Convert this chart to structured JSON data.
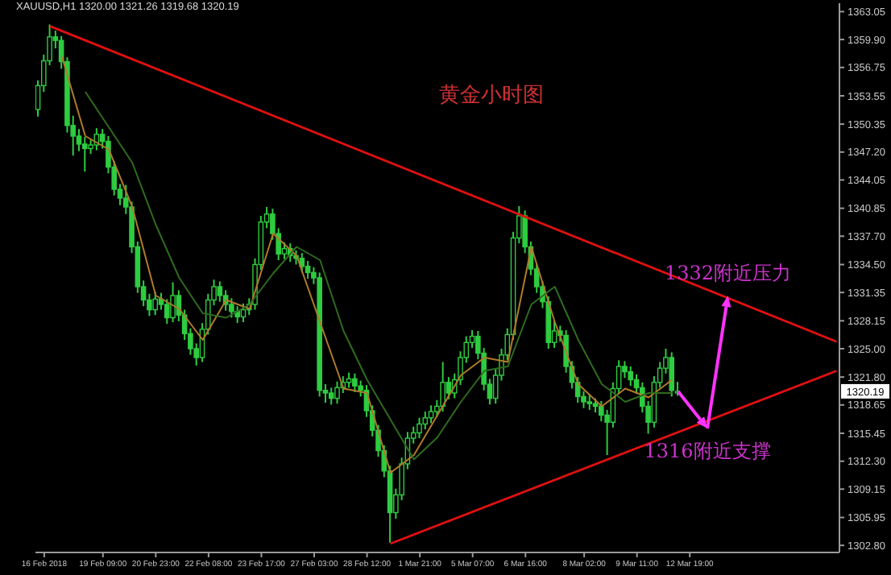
{
  "chart_data": {
    "type": "candlestick",
    "title": "黄金小时图",
    "color": "#2ecc40",
    "categories": [
      null,
      "16 Feb 2018",
      null,
      null,
      null,
      null,
      null,
      null,
      null,
      null,
      null,
      "19 Feb 09:00",
      null,
      null,
      null,
      null,
      null,
      null,
      null,
      null,
      "20 Feb 23:00",
      null,
      null,
      null,
      null,
      null,
      null,
      null,
      null,
      "22 Feb 08:00",
      null,
      null,
      null,
      null,
      null,
      null,
      null,
      null,
      "23 Feb 17:00",
      null,
      null,
      null,
      null,
      null,
      null,
      null,
      null,
      "27 Feb 03:00",
      null,
      null,
      null,
      null,
      null,
      null,
      null,
      null,
      "28 Feb 12:00",
      null,
      null,
      null,
      null,
      null,
      null,
      null,
      null,
      "1 Mar 21:00",
      null,
      null,
      null,
      null,
      null,
      null,
      null,
      null,
      "5 Mar 07:00",
      null,
      null,
      null,
      null,
      null,
      null,
      null,
      null,
      "6 Mar 16:00",
      null,
      null,
      null,
      null,
      null,
      null,
      null,
      null,
      null,
      "8 Mar 02:00",
      null,
      null,
      null,
      null,
      null,
      null,
      null,
      null,
      "9 Mar 11:00",
      null,
      null,
      null,
      null,
      null,
      null,
      null,
      null,
      "12 Mar 19:00",
      null,
      null,
      null,
      null,
      null,
      null,
      null,
      null,
      null,
      null,
      null,
      null,
      null,
      null,
      null,
      null,
      null,
      null,
      null,
      null,
      null,
      null,
      null,
      null,
      null
    ],
    "ohlc": [
      [
        1352.0,
        1355.3,
        1351.2,
        1354.7
      ],
      [
        1354.7,
        1358.2,
        1354.0,
        1357.5
      ],
      [
        1357.5,
        1361.6,
        1357.0,
        1360.2
      ],
      [
        1360.2,
        1360.9,
        1358.9,
        1359.8
      ],
      [
        1359.8,
        1360.3,
        1356.6,
        1357.4
      ],
      [
        1357.4,
        1357.9,
        1349.4,
        1350.2
      ],
      [
        1350.2,
        1351.3,
        1346.8,
        1349.0
      ],
      [
        1349.0,
        1349.8,
        1347.3,
        1348.1
      ],
      [
        1348.1,
        1348.9,
        1345.0,
        1347.6
      ],
      [
        1347.6,
        1348.7,
        1347.0,
        1348.0
      ],
      [
        1348.0,
        1349.9,
        1347.4,
        1349.2
      ],
      [
        1349.2,
        1349.8,
        1347.6,
        1348.4
      ],
      [
        1348.4,
        1349.0,
        1344.8,
        1345.5
      ],
      [
        1345.5,
        1346.2,
        1342.3,
        1343.0
      ],
      [
        1343.0,
        1343.6,
        1341.2,
        1342.0
      ],
      [
        1342.0,
        1343.5,
        1340.2,
        1341.0
      ],
      [
        1341.0,
        1341.6,
        1335.8,
        1336.5
      ],
      [
        1336.5,
        1337.1,
        1331.3,
        1332.0
      ],
      [
        1332.0,
        1332.7,
        1329.8,
        1330.5
      ],
      [
        1330.5,
        1331.2,
        1328.7,
        1329.4
      ],
      [
        1329.4,
        1331.4,
        1328.8,
        1330.6
      ],
      [
        1330.6,
        1331.3,
        1329.4,
        1330.0
      ],
      [
        1330.0,
        1330.6,
        1327.8,
        1328.5
      ],
      [
        1328.5,
        1332.5,
        1328.0,
        1331.0
      ],
      [
        1331.0,
        1331.6,
        1328.1,
        1328.8
      ],
      [
        1328.8,
        1329.4,
        1326.0,
        1326.7
      ],
      [
        1326.7,
        1327.3,
        1324.3,
        1325.0
      ],
      [
        1325.0,
        1325.6,
        1323.1,
        1324.0
      ],
      [
        1324.0,
        1327.9,
        1323.5,
        1327.2
      ],
      [
        1327.2,
        1331.2,
        1326.6,
        1330.5
      ],
      [
        1330.5,
        1332.8,
        1329.9,
        1332.0
      ],
      [
        1332.0,
        1332.6,
        1330.3,
        1331.0
      ],
      [
        1331.0,
        1331.6,
        1329.3,
        1330.0
      ],
      [
        1330.0,
        1330.7,
        1328.5,
        1329.2
      ],
      [
        1329.2,
        1329.8,
        1327.9,
        1328.6
      ],
      [
        1328.6,
        1330.1,
        1328.0,
        1329.4
      ],
      [
        1329.4,
        1330.7,
        1328.8,
        1330.0
      ],
      [
        1330.0,
        1335.2,
        1329.4,
        1334.5
      ],
      [
        1334.5,
        1340.0,
        1333.9,
        1339.3
      ],
      [
        1339.3,
        1341.0,
        1338.6,
        1340.2
      ],
      [
        1340.2,
        1340.8,
        1337.3,
        1338.0
      ],
      [
        1338.0,
        1338.6,
        1335.0,
        1335.7
      ],
      [
        1335.7,
        1337.0,
        1335.1,
        1336.3
      ],
      [
        1336.3,
        1336.9,
        1334.8,
        1335.5
      ],
      [
        1335.5,
        1336.1,
        1334.5,
        1335.2
      ],
      [
        1335.2,
        1335.8,
        1333.6,
        1334.3
      ],
      [
        1334.3,
        1334.9,
        1332.9,
        1333.6
      ],
      [
        1333.6,
        1334.2,
        1332.3,
        1333.0
      ],
      [
        1333.0,
        1333.6,
        1319.6,
        1320.3
      ],
      [
        1320.3,
        1321.0,
        1318.9,
        1320.0
      ],
      [
        1320.0,
        1320.6,
        1318.7,
        1319.4
      ],
      [
        1319.4,
        1321.3,
        1318.8,
        1320.6
      ],
      [
        1320.6,
        1321.9,
        1320.0,
        1321.2
      ],
      [
        1321.2,
        1322.3,
        1320.6,
        1321.6
      ],
      [
        1321.6,
        1322.2,
        1320.1,
        1320.8
      ],
      [
        1320.8,
        1321.4,
        1319.6,
        1320.3
      ],
      [
        1320.3,
        1320.9,
        1317.3,
        1318.0
      ],
      [
        1318.0,
        1318.6,
        1315.1,
        1315.8
      ],
      [
        1315.8,
        1316.4,
        1312.8,
        1313.5
      ],
      [
        1313.5,
        1314.1,
        1310.5,
        1311.2
      ],
      [
        1311.2,
        1311.8,
        1303.1,
        1306.5
      ],
      [
        1306.5,
        1309.2,
        1305.8,
        1308.5
      ],
      [
        1308.5,
        1312.7,
        1307.9,
        1312.0
      ],
      [
        1312.0,
        1315.6,
        1311.4,
        1314.9
      ],
      [
        1314.9,
        1316.2,
        1314.3,
        1315.5
      ],
      [
        1315.5,
        1317.2,
        1314.9,
        1316.5
      ],
      [
        1316.5,
        1317.9,
        1315.9,
        1317.2
      ],
      [
        1317.2,
        1318.6,
        1316.6,
        1317.9
      ],
      [
        1317.9,
        1319.2,
        1317.3,
        1318.5
      ],
      [
        1318.5,
        1323.5,
        1317.9,
        1321.2
      ],
      [
        1321.2,
        1321.8,
        1319.3,
        1320.0
      ],
      [
        1320.0,
        1322.2,
        1319.4,
        1321.5
      ],
      [
        1321.5,
        1324.7,
        1320.9,
        1324.0
      ],
      [
        1324.0,
        1326.4,
        1323.4,
        1325.7
      ],
      [
        1325.7,
        1327.1,
        1325.1,
        1326.4
      ],
      [
        1326.4,
        1327.0,
        1323.8,
        1324.5
      ],
      [
        1324.5,
        1325.1,
        1320.3,
        1321.0
      ],
      [
        1321.0,
        1321.6,
        1318.7,
        1319.4
      ],
      [
        1319.4,
        1322.7,
        1318.8,
        1322.0
      ],
      [
        1322.0,
        1325.0,
        1321.4,
        1324.3
      ],
      [
        1324.3,
        1327.3,
        1323.7,
        1326.6
      ],
      [
        1326.6,
        1338.2,
        1326.0,
        1337.5
      ],
      [
        1337.5,
        1341.1,
        1336.9,
        1340.0
      ],
      [
        1340.0,
        1340.6,
        1335.8,
        1336.5
      ],
      [
        1336.5,
        1337.1,
        1333.3,
        1334.0
      ],
      [
        1334.0,
        1334.6,
        1331.3,
        1332.0
      ],
      [
        1332.0,
        1332.6,
        1329.6,
        1330.3
      ],
      [
        1330.3,
        1330.9,
        1325.0,
        1325.7
      ],
      [
        1325.7,
        1328.2,
        1325.1,
        1327.0
      ],
      [
        1327.0,
        1327.6,
        1325.8,
        1326.5
      ],
      [
        1326.5,
        1327.1,
        1322.3,
        1323.0
      ],
      [
        1323.0,
        1323.6,
        1320.5,
        1321.2
      ],
      [
        1321.2,
        1321.8,
        1318.9,
        1319.6
      ],
      [
        1319.6,
        1320.2,
        1318.3,
        1319.0
      ],
      [
        1319.0,
        1319.9,
        1318.1,
        1318.8
      ],
      [
        1318.8,
        1319.4,
        1317.8,
        1318.5
      ],
      [
        1318.5,
        1319.1,
        1316.8,
        1317.5
      ],
      [
        1317.5,
        1318.1,
        1313.0,
        1316.7
      ],
      [
        1316.7,
        1321.2,
        1316.1,
        1320.5
      ],
      [
        1320.5,
        1323.7,
        1319.9,
        1323.0
      ],
      [
        1323.0,
        1323.6,
        1321.7,
        1322.4
      ],
      [
        1322.4,
        1323.0,
        1320.8,
        1321.5
      ],
      [
        1321.5,
        1322.1,
        1319.9,
        1320.6
      ],
      [
        1320.6,
        1321.2,
        1317.8,
        1318.5
      ],
      [
        1318.5,
        1319.1,
        1315.4,
        1316.7
      ],
      [
        1316.7,
        1321.9,
        1316.1,
        1321.2
      ],
      [
        1321.2,
        1323.5,
        1320.6,
        1322.8
      ],
      [
        1322.8,
        1325.0,
        1322.2,
        1324.0
      ],
      [
        1324.0,
        1324.6,
        1319.6,
        1320.3
      ],
      [
        1320.0,
        1321.26,
        1319.68,
        1320.19
      ],
      null,
      null,
      null,
      null,
      null,
      null,
      null,
      null,
      null,
      null,
      null,
      null,
      null,
      null,
      null,
      null,
      null,
      null,
      null,
      null,
      null,
      null,
      null,
      null,
      null,
      null,
      null
    ],
    "series": [
      {
        "type": "line",
        "color": "#b07a2a",
        "values": [
          null,
          null,
          null,
          null,
          1358,
          null,
          null,
          null,
          1349,
          null,
          null,
          null,
          1347.5,
          null,
          null,
          null,
          1341,
          null,
          null,
          null,
          1331,
          null,
          null,
          null,
          1329.5,
          null,
          null,
          null,
          1326,
          null,
          null,
          null,
          1330.5,
          null,
          null,
          null,
          1329.5,
          null,
          null,
          null,
          1338,
          null,
          null,
          null,
          1335.5,
          null,
          null,
          null,
          1328,
          null,
          null,
          null,
          1320.5,
          null,
          null,
          null,
          1320,
          null,
          null,
          null,
          1311,
          null,
          null,
          null,
          1313,
          null,
          null,
          null,
          1317.5,
          null,
          null,
          null,
          1322,
          null,
          null,
          null,
          1324,
          null,
          null,
          null,
          1323.5,
          null,
          null,
          null,
          1336.5,
          null,
          null,
          null,
          1328,
          null,
          null,
          null,
          1321,
          null,
          null,
          null,
          1318.5,
          null,
          null,
          null,
          1320.5,
          null,
          null,
          null,
          1319.5,
          null,
          null,
          null,
          1321.5,
          null,
          null,
          null,
          null,
          null,
          null,
          null,
          null,
          null,
          null,
          null,
          null,
          null,
          null,
          null,
          null,
          null,
          null,
          null,
          null,
          null,
          null,
          null,
          null,
          null,
          null,
          null,
          null
        ]
      },
      {
        "type": "line",
        "color": "#2f6b1f",
        "values": [
          null,
          null,
          null,
          null,
          null,
          null,
          null,
          null,
          1354,
          null,
          null,
          null,
          1350,
          null,
          null,
          null,
          1346,
          null,
          null,
          null,
          1339,
          null,
          null,
          null,
          1333,
          null,
          null,
          null,
          1329,
          null,
          null,
          null,
          1328.5,
          null,
          null,
          null,
          1330,
          null,
          null,
          null,
          1333.5,
          null,
          null,
          null,
          1336.5,
          null,
          null,
          null,
          1335,
          null,
          null,
          null,
          1327,
          null,
          null,
          null,
          1321.5,
          null,
          null,
          null,
          1317,
          null,
          null,
          null,
          1312.5,
          null,
          null,
          null,
          1315,
          null,
          null,
          null,
          1319,
          null,
          null,
          null,
          1322.5,
          null,
          null,
          null,
          1323,
          null,
          null,
          null,
          1330,
          null,
          null,
          null,
          1332,
          null,
          null,
          null,
          1326,
          null,
          null,
          null,
          1321,
          null,
          null,
          null,
          1319,
          null,
          null,
          null,
          1320,
          null,
          null,
          null,
          1320,
          null,
          null,
          null,
          null,
          null,
          null,
          null,
          null,
          null,
          null,
          null,
          null,
          null,
          null,
          null,
          null,
          null,
          null,
          null,
          null,
          null,
          null,
          null,
          null,
          null,
          null,
          null,
          null
        ]
      },
      {
        "type": "line",
        "color": "#e01010",
        "values": [
          null,
          null,
          1361.4,
          null,
          null,
          null,
          null,
          null,
          null,
          null,
          null,
          null,
          null,
          null,
          null,
          null,
          null,
          null,
          null,
          null,
          null,
          null,
          null,
          null,
          null,
          null,
          null,
          null,
          null,
          null,
          null,
          null,
          null,
          null,
          null,
          null,
          null,
          null,
          null,
          null,
          null,
          null,
          null,
          null,
          null,
          null,
          null,
          null,
          null,
          null,
          null,
          null,
          null,
          null,
          null,
          null,
          null,
          null,
          null,
          null,
          null,
          null,
          null,
          null,
          null,
          null,
          null,
          null,
          null,
          null,
          null,
          null,
          null,
          null,
          null,
          null,
          null,
          null,
          null,
          null,
          null,
          null,
          null,
          null,
          null,
          null,
          null,
          null,
          null,
          null,
          null,
          null,
          null,
          null,
          null,
          null,
          null,
          null,
          null,
          null,
          null,
          null,
          null,
          null,
          null,
          null,
          null,
          null,
          null,
          null,
          null,
          null,
          null,
          null,
          null,
          null,
          null,
          null,
          null,
          null,
          null,
          null,
          null,
          null,
          null,
          null,
          null,
          null,
          null,
          null,
          null,
          null,
          null,
          null,
          null,
          null,
          1325.8
        ]
      },
      {
        "type": "line",
        "color": "#e01010",
        "values": [
          null,
          null,
          null,
          null,
          null,
          null,
          null,
          null,
          null,
          null,
          null,
          null,
          null,
          null,
          null,
          null,
          null,
          null,
          null,
          null,
          null,
          null,
          null,
          null,
          null,
          null,
          null,
          null,
          null,
          null,
          null,
          null,
          null,
          null,
          null,
          null,
          null,
          null,
          null,
          null,
          null,
          null,
          null,
          null,
          null,
          null,
          null,
          null,
          null,
          null,
          null,
          null,
          null,
          null,
          null,
          null,
          null,
          null,
          null,
          null,
          1303.0,
          null,
          null,
          null,
          null,
          null,
          null,
          null,
          null,
          null,
          null,
          null,
          null,
          null,
          null,
          null,
          null,
          null,
          null,
          null,
          null,
          null,
          null,
          null,
          null,
          null,
          null,
          null,
          null,
          null,
          null,
          null,
          null,
          null,
          null,
          null,
          null,
          null,
          null,
          null,
          null,
          null,
          null,
          null,
          null,
          null,
          null,
          null,
          null,
          null,
          null,
          null,
          null,
          null,
          null,
          null,
          null,
          null,
          null,
          null,
          null,
          null,
          null,
          null,
          null,
          null,
          null,
          null,
          null,
          null,
          null,
          null,
          null,
          null,
          null,
          null,
          1322.5
        ]
      }
    ],
    "ylim": [
      1302.0,
      1364.0
    ],
    "yticks": [
      {
        "value": 1363.05,
        "label": "1363.05"
      },
      {
        "value": 1359.9,
        "label": "1359.90"
      },
      {
        "value": 1356.75,
        "label": "1356.75"
      },
      {
        "value": 1353.55,
        "label": "1353.55"
      },
      {
        "value": 1350.35,
        "label": "1350.35"
      },
      {
        "value": 1347.2,
        "label": "1347.20"
      },
      {
        "value": 1344.05,
        "label": "1344.05"
      },
      {
        "value": 1340.85,
        "label": "1340.85"
      },
      {
        "value": 1337.7,
        "label": "1337.70"
      },
      {
        "value": 1334.5,
        "label": "1334.50"
      },
      {
        "value": 1331.35,
        "label": "1331.35"
      },
      {
        "value": 1328.15,
        "label": "1328.15"
      },
      {
        "value": 1325.0,
        "label": "1325.00"
      },
      {
        "value": 1321.8,
        "label": "1321.80"
      },
      {
        "value": 1318.65,
        "label": "1318.65"
      },
      {
        "value": 1315.45,
        "label": "1315.45"
      },
      {
        "value": 1312.3,
        "label": "1312.30"
      },
      {
        "value": 1309.15,
        "label": "1309.15"
      },
      {
        "value": 1305.95,
        "label": "1305.95"
      },
      {
        "value": 1302.8,
        "label": "1302.80"
      }
    ],
    "annotations": [
      "XAUUSD,H1  1320.00 1321.26 1319.68 1320.19",
      {
        "text": "1316附近支撑",
        "y": 1316
      },
      {
        "text": "1332附近压力",
        "y": 1331
      },
      {
        "text": "1320.19",
        "y": 1320.19
      }
    ]
  }
}
